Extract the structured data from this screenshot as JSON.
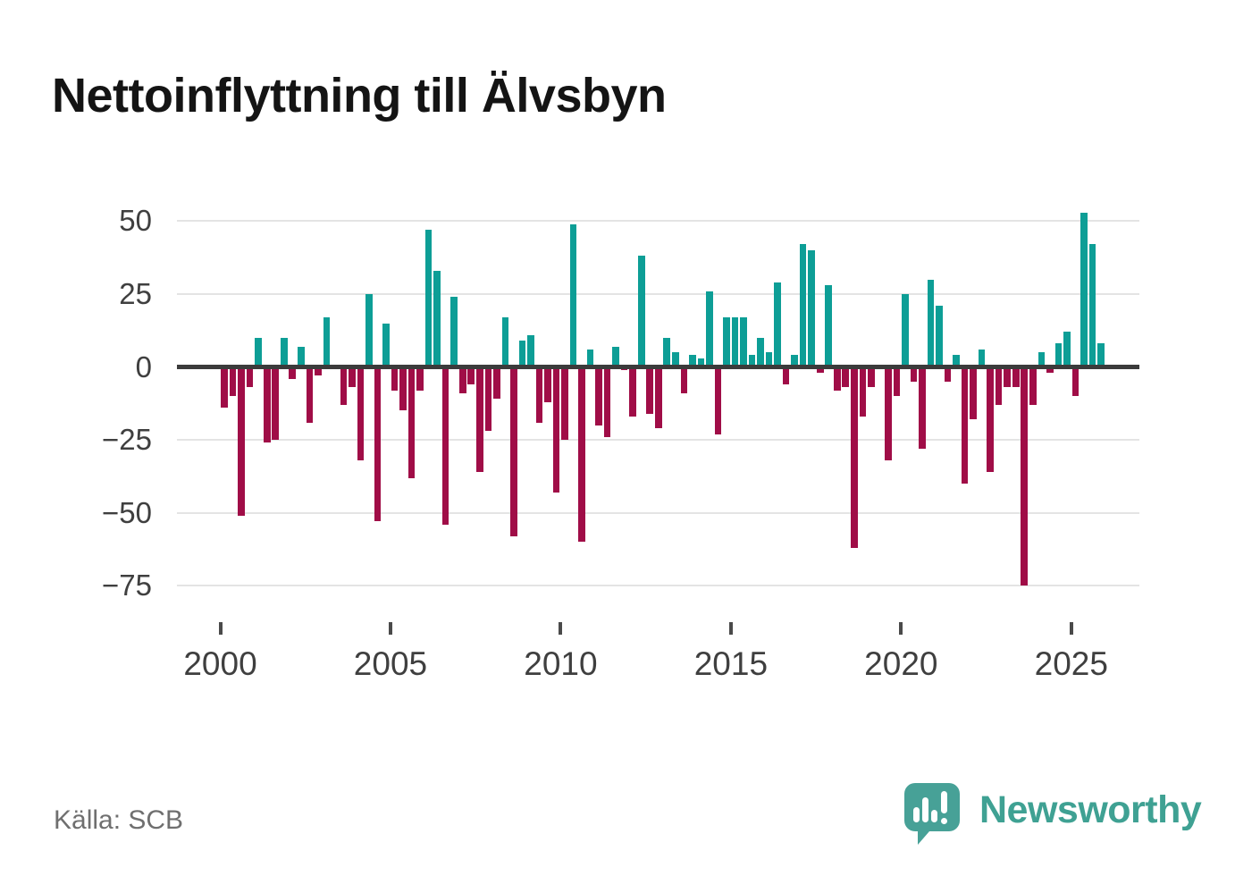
{
  "page": {
    "title": "Nettoinflyttning till Älvsbyn",
    "source": "Källa: SCB"
  },
  "brand": {
    "name": "Newsworthy",
    "logo_color": "#47a197",
    "text_color": "#3fa193"
  },
  "chart_data": {
    "type": "bar",
    "title": "Nettoinflyttning till Älvsbyn",
    "frequency": "quarterly",
    "x_start_year": 2000,
    "x_start_quarter": 1,
    "x_end_year": 2025,
    "x_end_quarter": 4,
    "values": [
      -14,
      -10,
      -51,
      -7,
      10,
      -26,
      -25,
      10,
      -4,
      7,
      -19,
      -3,
      17,
      0,
      -13,
      -7,
      -32,
      25,
      -53,
      15,
      -8,
      -15,
      -38,
      -8,
      47,
      33,
      -54,
      24,
      -9,
      -6,
      -36,
      -22,
      -11,
      17,
      -58,
      9,
      11,
      -19,
      -12,
      -43,
      -25,
      49,
      -60,
      6,
      -20,
      -24,
      7,
      -1,
      -17,
      38,
      -16,
      -21,
      10,
      5,
      -9,
      4,
      3,
      26,
      -23,
      17,
      17,
      17,
      4,
      10,
      5,
      29,
      -6,
      4,
      42,
      40,
      -2,
      28,
      -8,
      -7,
      -62,
      -17,
      -7,
      0,
      -32,
      -10,
      25,
      -5,
      -28,
      30,
      21,
      -5,
      4,
      -40,
      -18,
      6,
      -36,
      -13,
      -7,
      -7,
      -75,
      -13,
      5,
      -2,
      8,
      12,
      -10,
      53,
      42,
      8
    ],
    "x_tick_labels": [
      "2000",
      "2005",
      "2010",
      "2015",
      "2020",
      "2025"
    ],
    "y_ticks": [
      50,
      25,
      0,
      -25,
      -50,
      -75
    ],
    "y_tick_labels": [
      "50",
      "25",
      "0",
      "−25",
      "−50",
      "−75"
    ],
    "ylim": [
      -88,
      57
    ],
    "grid": "horizontal",
    "legend": "none",
    "bar_colors": {
      "positive": "#0d9e96",
      "negative": "#a00d47"
    }
  }
}
